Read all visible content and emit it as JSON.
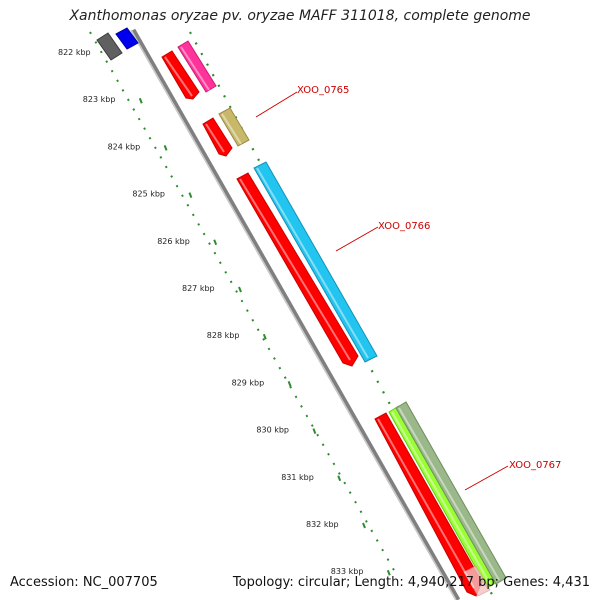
{
  "header": {
    "title": "Xanthomonas oryzae pv. oryzae MAFF 311018, complete genome"
  },
  "footer": {
    "accession": "Accession: NC_007705",
    "summary": "Topology: circular; Length: 4,940,217 bp; Genes: 4,431"
  },
  "ruler": {
    "ticks": [
      {
        "label": "822 kbp"
      },
      {
        "label": "823 kbp"
      },
      {
        "label": "824 kbp"
      },
      {
        "label": "825 kbp"
      },
      {
        "label": "826 kbp"
      },
      {
        "label": "827 kbp"
      },
      {
        "label": "828 kbp"
      },
      {
        "label": "829 kbp"
      },
      {
        "label": "830 kbp"
      },
      {
        "label": "831 kbp"
      },
      {
        "label": "832 kbp"
      },
      {
        "label": "833 kbp"
      }
    ]
  },
  "gene_labels": [
    {
      "label": "XOO_0765"
    },
    {
      "label": "XOO_0766"
    },
    {
      "label": "XOO_0767"
    }
  ],
  "colors": {
    "backbone": "#808080",
    "tick": "#2e8b2e",
    "cds": "#ff0000",
    "label": "#cc0000",
    "gray_feature": "#606060",
    "blue_feature": "#0000ee",
    "magenta_feature": "#ff3399",
    "khaki_feature": "#c8b96a",
    "cyan_feature": "#22c4f0",
    "lime_feature": "#99ff33",
    "sage_feature": "#9ab88a"
  }
}
